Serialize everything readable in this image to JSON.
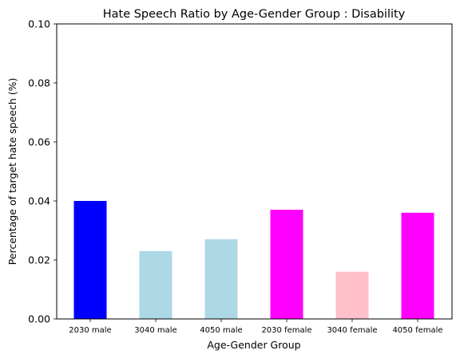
{
  "chart_data": {
    "type": "bar",
    "title": "Hate Speech Ratio by Age-Gender Group : Disability",
    "xlabel": "Age-Gender Group",
    "ylabel": "Percentage of target hate speech (%)",
    "categories": [
      "2030 male",
      "3040 male",
      "4050 male",
      "2030 female",
      "3040 female",
      "4050 female"
    ],
    "values": [
      0.04,
      0.023,
      0.027,
      0.037,
      0.016,
      0.036
    ],
    "colors": [
      "#0000ff",
      "#add8e6",
      "#add8e6",
      "#ff00ff",
      "#ffc0cb",
      "#ff00ff"
    ],
    "ylim": [
      0,
      0.1
    ],
    "yticks": [
      "0.00",
      "0.02",
      "0.04",
      "0.06",
      "0.08",
      "0.10"
    ],
    "grid": false,
    "legend": "none"
  }
}
